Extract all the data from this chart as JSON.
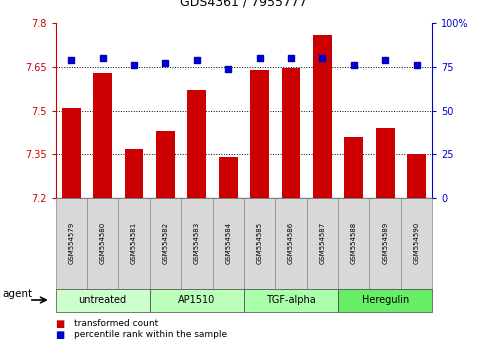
{
  "title": "GDS4361 / 7955777",
  "samples": [
    "GSM554579",
    "GSM554580",
    "GSM554581",
    "GSM554582",
    "GSM554583",
    "GSM554584",
    "GSM554585",
    "GSM554586",
    "GSM554587",
    "GSM554588",
    "GSM554589",
    "GSM554590"
  ],
  "bar_values": [
    7.51,
    7.63,
    7.37,
    7.43,
    7.57,
    7.34,
    7.64,
    7.645,
    7.76,
    7.41,
    7.44,
    7.35
  ],
  "percentile_values": [
    79,
    80,
    76,
    77,
    79,
    74,
    80,
    80,
    80,
    76,
    79,
    76
  ],
  "bar_color": "#cc0000",
  "pct_color": "#0000cc",
  "ymin": 7.2,
  "ymax": 7.8,
  "y_ticks": [
    7.2,
    7.35,
    7.5,
    7.65,
    7.8
  ],
  "y_tick_labels": [
    "7.2",
    "7.35",
    "7.5",
    "7.65",
    "7.8"
  ],
  "y2min": 0,
  "y2max": 100,
  "y2_ticks": [
    0,
    25,
    50,
    75,
    100
  ],
  "y2_tick_labels": [
    "0",
    "25",
    "50",
    "75",
    "100%"
  ],
  "groups": [
    {
      "label": "untreated",
      "start": 0,
      "end": 3,
      "color": "#ccffcc"
    },
    {
      "label": "AP1510",
      "start": 3,
      "end": 6,
      "color": "#bbffbb"
    },
    {
      "label": "TGF-alpha",
      "start": 6,
      "end": 9,
      "color": "#aaffaa"
    },
    {
      "label": "Heregulin",
      "start": 9,
      "end": 12,
      "color": "#66ee66"
    }
  ],
  "agent_label": "agent",
  "legend1_label": "transformed count",
  "legend2_label": "percentile rank within the sample",
  "tick_color_left": "#cc0000",
  "tick_color_right": "#0000cc",
  "bar_width": 0.6,
  "header_bg": "#d8d8d8"
}
